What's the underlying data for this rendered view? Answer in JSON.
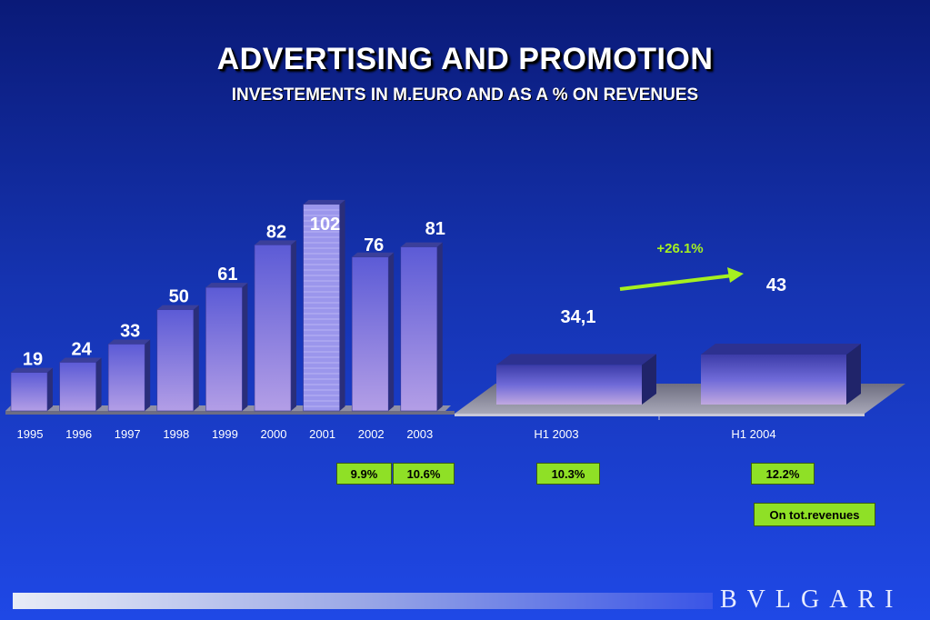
{
  "header": {
    "title": "ADVERTISING AND PROMOTION",
    "subtitle": "INVESTEMENTS IN M.EURO AND AS A % ON REVENUES"
  },
  "chart_data": [
    {
      "type": "bar",
      "categories": [
        "1995",
        "1996",
        "1997",
        "1998",
        "1999",
        "2000",
        "2001",
        "2002",
        "2003"
      ],
      "values": [
        19,
        24,
        33,
        50,
        61,
        82,
        102,
        76,
        81
      ],
      "value_labels": [
        "19",
        "24",
        "33",
        "50",
        "61",
        "82",
        "102",
        "76",
        "81"
      ],
      "highlight_category": "2001",
      "ylim": [
        0,
        110
      ]
    },
    {
      "type": "bar",
      "categories": [
        "H1 2003",
        "H1 2004"
      ],
      "values": [
        34.1,
        43
      ],
      "value_labels": [
        "34,1",
        "43"
      ],
      "growth_label": "+26.1%",
      "ylim": [
        0,
        110
      ]
    }
  ],
  "revenue_pct": [
    {
      "label": "9.9%",
      "category": "2002"
    },
    {
      "label": "10.6%",
      "category": "2003"
    },
    {
      "label": "10.3%",
      "category": "H1 2003"
    },
    {
      "label": "12.2%",
      "category": "H1 2004"
    }
  ],
  "revenue_note": "On tot.revenues",
  "brand": "BVLGARI",
  "colors": {
    "bar_front": "#8a86e6",
    "bar_side": "#2a2e7a",
    "growth": "#a6f020",
    "highlight_box": "#8fe026"
  }
}
